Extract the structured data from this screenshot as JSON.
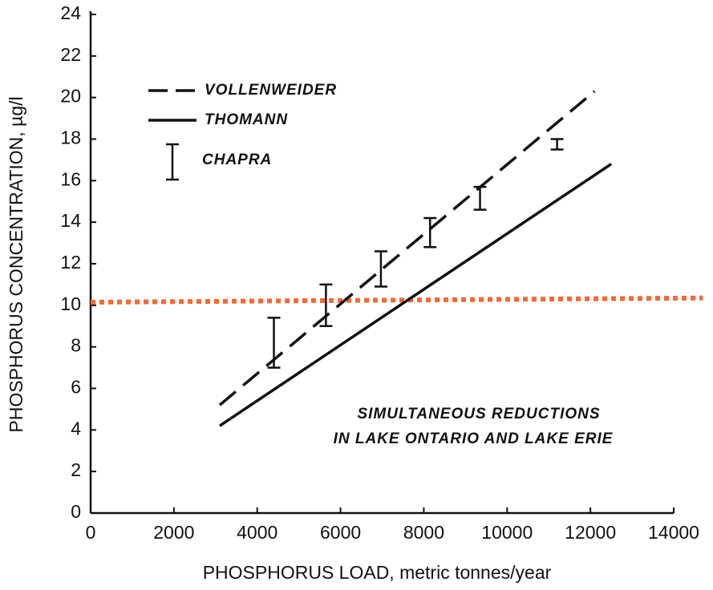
{
  "chart_data": {
    "type": "line",
    "xlabel": "PHOSPHORUS LOAD, metric tonnes/year",
    "ylabel": "PHOSPHORUS CONCENTRATION, µg/l",
    "xlim": [
      0,
      14000
    ],
    "ylim": [
      0,
      24
    ],
    "xticks": [
      0,
      2000,
      4000,
      6000,
      8000,
      10000,
      12000,
      14000
    ],
    "yticks": [
      0,
      2,
      4,
      6,
      8,
      10,
      12,
      14,
      16,
      18,
      20,
      22,
      24
    ],
    "series": [
      {
        "name": "VOLLENWEIDER",
        "style": "dashed",
        "color": "#111111",
        "x": [
          3100,
          12100
        ],
        "values": [
          5.2,
          20.3
        ]
      },
      {
        "name": "THOMANN",
        "style": "solid",
        "color": "#111111",
        "x": [
          3100,
          12500
        ],
        "values": [
          4.2,
          16.8
        ]
      },
      {
        "name": "CHAPRA",
        "style": "errorbar",
        "color": "#111111",
        "x": [
          4400,
          5650,
          6970,
          8150,
          9350,
          11200
        ],
        "values": [
          8.2,
          10,
          11.75,
          13.5,
          15.15,
          17.75
        ],
        "errors": [
          1.2,
          1,
          0.85,
          0.7,
          0.55,
          0.25
        ]
      }
    ],
    "reference_line": {
      "color": "#f26a3a",
      "x": [
        0,
        14700
      ],
      "values": [
        10.15,
        10.35
      ]
    },
    "annotation": [
      "SIMULTANEOUS REDUCTIONS",
      "IN LAKE ONTARIO AND LAKE ERIE"
    ]
  }
}
